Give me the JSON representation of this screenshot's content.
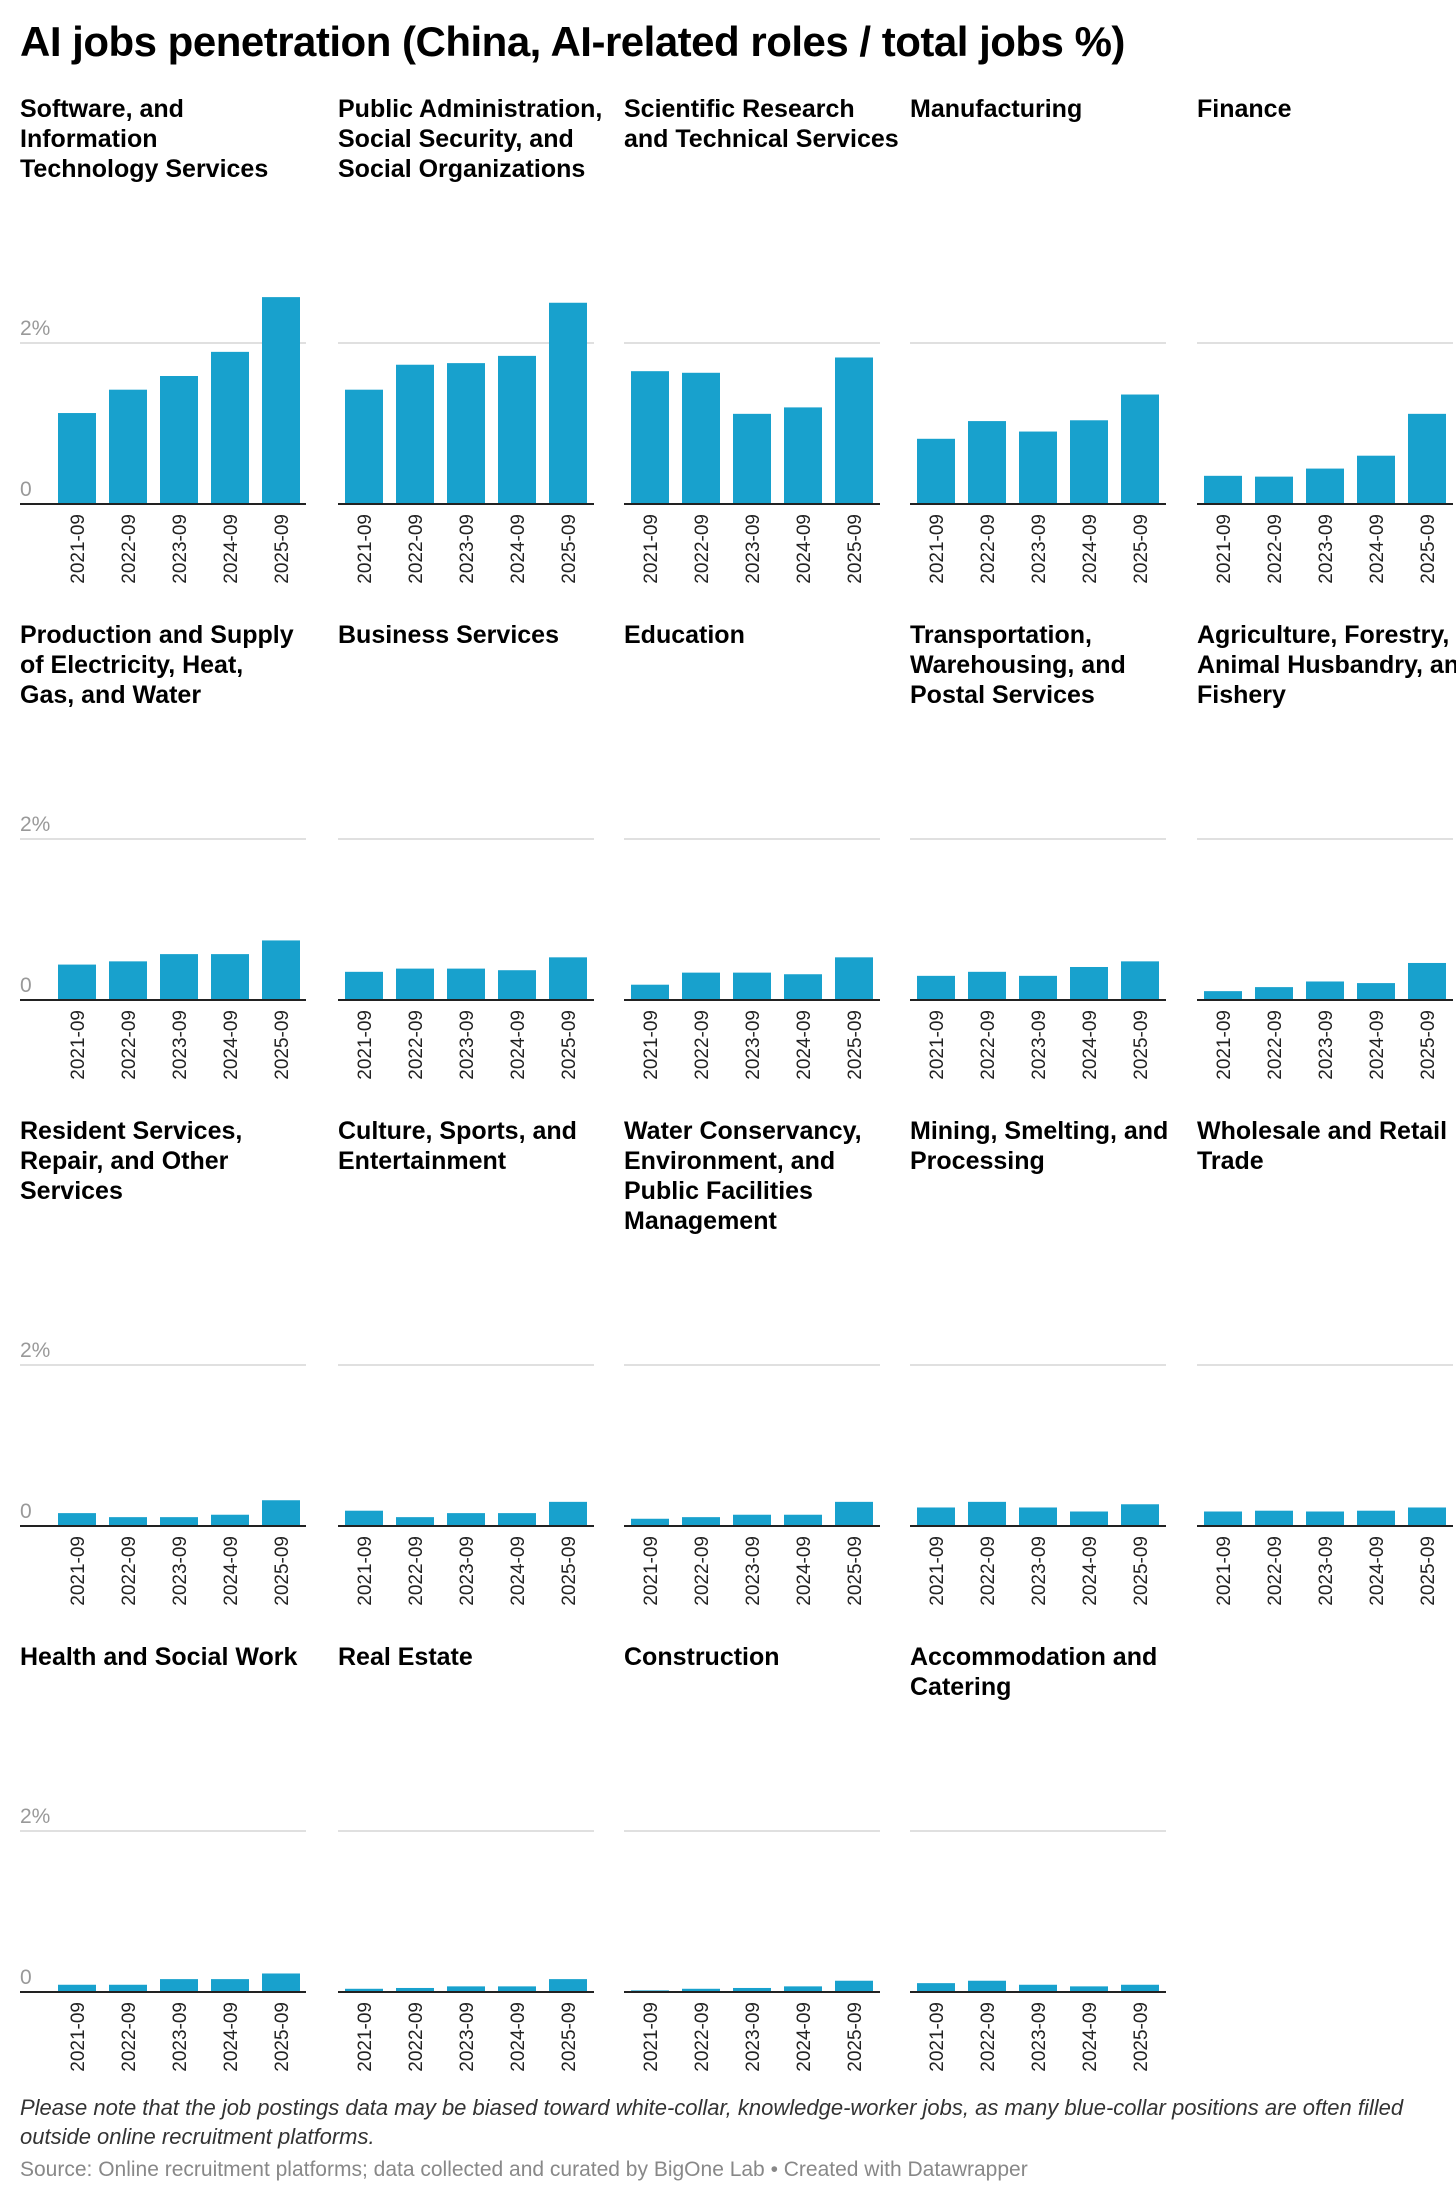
{
  "title": "AI jobs penetration (China, AI-related roles / total jobs %)",
  "note": "Please note that the job postings data may be biased toward white-collar, knowledge-worker jobs, as many blue-collar positions are often filled outside online recruitment platforms.",
  "source": "Source: Online recruitment platforms; data collected and curated by BigOne Lab • Created with Datawrapper",
  "colors": {
    "bar": "#18a1cd",
    "grid": "#e0e0e0",
    "axis": "#222222",
    "tick": "#999999"
  },
  "chart_data": {
    "type": "bar",
    "layout": "small-multiples",
    "categories": [
      "2021-09",
      "2022-09",
      "2023-09",
      "2024-09",
      "2025-09"
    ],
    "ylabel": "AI-related roles / total jobs (%)",
    "yticks": [
      "0",
      "2%"
    ],
    "ylim": [
      0,
      2.6
    ],
    "grid": true,
    "panels": [
      {
        "title": "Software, and Information Technology Services",
        "values": [
          1.13,
          1.42,
          1.59,
          1.89,
          2.57
        ]
      },
      {
        "title": "Public Administration, Social Security, and Social Organizations",
        "values": [
          1.42,
          1.73,
          1.75,
          1.84,
          2.5
        ]
      },
      {
        "title": "Scientific Research and Technical Services",
        "values": [
          1.65,
          1.63,
          1.12,
          1.2,
          1.82
        ]
      },
      {
        "title": "Manufacturing",
        "values": [
          0.81,
          1.03,
          0.9,
          1.04,
          1.36
        ]
      },
      {
        "title": "Finance",
        "values": [
          0.35,
          0.34,
          0.44,
          0.6,
          1.12
        ]
      },
      {
        "title": "Production and Supply of Electricity, Heat, Gas, and Water",
        "values": [
          0.44,
          0.48,
          0.57,
          0.57,
          0.74
        ]
      },
      {
        "title": "Business Services",
        "values": [
          0.35,
          0.39,
          0.39,
          0.37,
          0.53
        ]
      },
      {
        "title": "Education",
        "values": [
          0.19,
          0.34,
          0.34,
          0.32,
          0.53
        ]
      },
      {
        "title": "Transportation, Warehousing, and Postal Services",
        "values": [
          0.3,
          0.35,
          0.3,
          0.41,
          0.48
        ]
      },
      {
        "title": "Agriculture, Forestry, Animal Husbandry, and Fishery",
        "values": [
          0.11,
          0.16,
          0.23,
          0.21,
          0.46
        ]
      },
      {
        "title": "Resident Services, Repair, and Other Services",
        "values": [
          0.16,
          0.11,
          0.11,
          0.14,
          0.32
        ]
      },
      {
        "title": "Culture, Sports, and Entertainment",
        "values": [
          0.19,
          0.11,
          0.16,
          0.16,
          0.3
        ]
      },
      {
        "title": "Water Conservancy, Environment, and Public Facilities Management",
        "values": [
          0.09,
          0.11,
          0.14,
          0.14,
          0.3
        ]
      },
      {
        "title": "Mining, Smelting, and Processing",
        "values": [
          0.23,
          0.3,
          0.23,
          0.18,
          0.27
        ]
      },
      {
        "title": "Wholesale and Retail Trade",
        "values": [
          0.18,
          0.19,
          0.18,
          0.19,
          0.23
        ]
      },
      {
        "title": "Health and Social Work",
        "values": [
          0.09,
          0.09,
          0.16,
          0.16,
          0.23
        ]
      },
      {
        "title": "Real Estate",
        "values": [
          0.04,
          0.05,
          0.07,
          0.07,
          0.16
        ]
      },
      {
        "title": "Construction",
        "values": [
          0.02,
          0.04,
          0.05,
          0.07,
          0.14
        ]
      },
      {
        "title": "Accommodation and Catering",
        "values": [
          0.11,
          0.14,
          0.09,
          0.07,
          0.09
        ]
      }
    ]
  }
}
